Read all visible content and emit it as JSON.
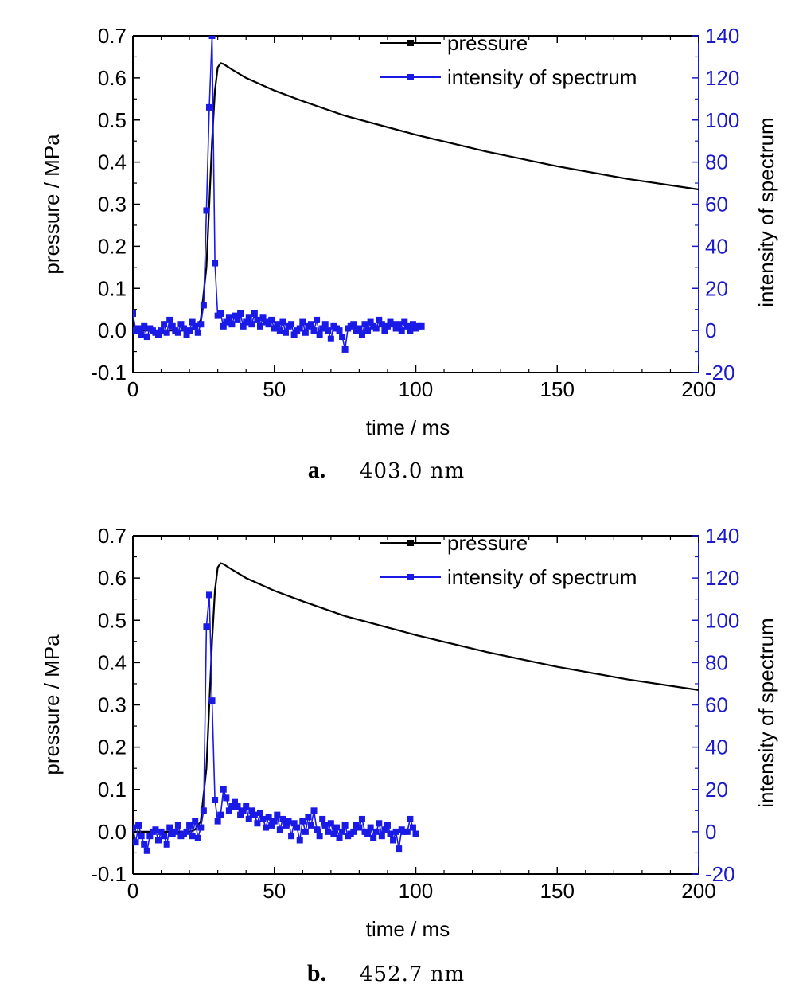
{
  "colors": {
    "pressure": "#000000",
    "intensity": "#1a1ae6",
    "right_axis": "#1a1acc",
    "axis": "#000000"
  },
  "icons": {
    "pressure_marker": "square-marker",
    "intensity_marker": "square-marker"
  },
  "chart_data": [
    {
      "type": "line",
      "caption_letter": "a.",
      "caption_text": "403.0 nm",
      "xlabel": "time / ms",
      "ylabel": "pressure / MPa",
      "y2label": "intensity of spectrum",
      "xlim": [
        0,
        200
      ],
      "ylim": [
        -0.1,
        0.7
      ],
      "y2lim": [
        -20,
        140
      ],
      "x_ticks": [
        "0",
        "50",
        "100",
        "150",
        "200"
      ],
      "y_ticks": [
        "-0.1",
        "0.0",
        "0.1",
        "0.2",
        "0.3",
        "0.4",
        "0.5",
        "0.6",
        "0.7"
      ],
      "y2_ticks": [
        "-20",
        "0",
        "20",
        "40",
        "60",
        "80",
        "100",
        "120",
        "140"
      ],
      "grid": false,
      "legend_position": "top-right",
      "series": [
        {
          "name": "pressure",
          "axis": "left",
          "x": [
            0,
            20,
            22,
            24,
            26,
            27,
            28,
            29,
            30,
            31,
            32,
            35,
            40,
            50,
            60,
            75,
            100,
            125,
            150,
            175,
            200
          ],
          "y": [
            0.0,
            0.0,
            0.005,
            0.025,
            0.15,
            0.3,
            0.45,
            0.57,
            0.625,
            0.635,
            0.633,
            0.62,
            0.6,
            0.57,
            0.545,
            0.51,
            0.465,
            0.425,
            0.39,
            0.36,
            0.335
          ]
        },
        {
          "name": "intensity of spectrum",
          "axis": "right",
          "x": [
            0,
            1,
            2,
            3,
            4,
            5,
            6,
            7,
            8,
            9,
            10,
            11,
            12,
            13,
            14,
            15,
            16,
            17,
            18,
            19,
            20,
            21,
            22,
            23,
            24,
            25,
            26,
            27,
            28,
            29,
            30,
            31,
            32,
            33,
            34,
            35,
            36,
            37,
            38,
            39,
            40,
            41,
            42,
            43,
            44,
            45,
            46,
            47,
            48,
            49,
            50,
            51,
            52,
            53,
            54,
            55,
            56,
            57,
            58,
            59,
            60,
            61,
            62,
            63,
            64,
            65,
            66,
            67,
            68,
            69,
            70,
            71,
            72,
            73,
            74,
            75,
            76,
            77,
            78,
            79,
            80,
            81,
            82,
            83,
            84,
            85,
            86,
            87,
            88,
            89,
            90,
            91,
            92,
            93,
            94,
            95,
            96,
            97,
            98,
            99,
            100,
            101,
            102
          ],
          "y": [
            8,
            0,
            1,
            -2,
            2,
            -3,
            1,
            0,
            -1,
            -2,
            0,
            3,
            -1,
            5,
            2,
            0,
            -1,
            3,
            1,
            -2,
            0,
            4,
            2,
            -1,
            3,
            12,
            57,
            106,
            140,
            32,
            7,
            8,
            2,
            4,
            6,
            3,
            7,
            5,
            8,
            2,
            4,
            6,
            3,
            8,
            5,
            2,
            6,
            4,
            3,
            5,
            1,
            3,
            0,
            4,
            -1,
            2,
            3,
            -2,
            0,
            1,
            4,
            -1,
            2,
            3,
            0,
            5,
            -2,
            1,
            3,
            0,
            -4,
            2,
            1,
            0,
            -3,
            -9,
            1,
            2,
            3,
            0,
            1,
            -2,
            3,
            0,
            4,
            2,
            1,
            5,
            3,
            0,
            2,
            4,
            3,
            1,
            3,
            0,
            4,
            2,
            0,
            3,
            1,
            2,
            2
          ]
        }
      ]
    },
    {
      "type": "line",
      "caption_letter": "b.",
      "caption_text": "452.7 nm",
      "xlabel": "time / ms",
      "ylabel": "pressure / MPa",
      "y2label": "intensity of spectrum",
      "xlim": [
        0,
        200
      ],
      "ylim": [
        -0.1,
        0.7
      ],
      "y2lim": [
        -20,
        140
      ],
      "x_ticks": [
        "0",
        "50",
        "100",
        "150",
        "200"
      ],
      "y_ticks": [
        "-0.1",
        "0.0",
        "0.1",
        "0.2",
        "0.3",
        "0.4",
        "0.5",
        "0.6",
        "0.7"
      ],
      "y2_ticks": [
        "-20",
        "0",
        "20",
        "40",
        "60",
        "80",
        "100",
        "120",
        "140"
      ],
      "grid": false,
      "legend_position": "top-right",
      "series": [
        {
          "name": "pressure",
          "axis": "left",
          "x": [
            0,
            20,
            22,
            24,
            26,
            27,
            28,
            29,
            30,
            31,
            32,
            35,
            40,
            50,
            60,
            75,
            100,
            125,
            150,
            175,
            200
          ],
          "y": [
            0.0,
            0.0,
            0.005,
            0.025,
            0.15,
            0.3,
            0.45,
            0.57,
            0.625,
            0.635,
            0.633,
            0.62,
            0.6,
            0.57,
            0.545,
            0.51,
            0.465,
            0.425,
            0.39,
            0.36,
            0.335
          ]
        },
        {
          "name": "intensity of spectrum",
          "axis": "right",
          "x": [
            0,
            1,
            2,
            3,
            4,
            5,
            6,
            7,
            8,
            9,
            10,
            11,
            12,
            13,
            14,
            15,
            16,
            17,
            18,
            19,
            20,
            21,
            22,
            23,
            24,
            25,
            26,
            27,
            28,
            29,
            30,
            31,
            32,
            33,
            34,
            35,
            36,
            37,
            38,
            39,
            40,
            41,
            42,
            43,
            44,
            45,
            46,
            47,
            48,
            49,
            50,
            51,
            52,
            53,
            54,
            55,
            56,
            57,
            58,
            59,
            60,
            61,
            62,
            63,
            64,
            65,
            66,
            67,
            68,
            69,
            70,
            71,
            72,
            73,
            74,
            75,
            76,
            77,
            78,
            79,
            80,
            81,
            82,
            83,
            84,
            85,
            86,
            87,
            88,
            89,
            90,
            91,
            92,
            93,
            94,
            95,
            96,
            97,
            98,
            99,
            100
          ],
          "y": [
            2,
            -5,
            3,
            -2,
            -6,
            -9,
            -2,
            0,
            1,
            -4,
            0,
            -2,
            -6,
            2,
            -1,
            0,
            3,
            -2,
            -1,
            0,
            3,
            -2,
            5,
            -3,
            2,
            10,
            97,
            112,
            62,
            15,
            5,
            8,
            20,
            16,
            10,
            12,
            14,
            12,
            8,
            10,
            12,
            6,
            10,
            8,
            4,
            9,
            6,
            2,
            7,
            3,
            5,
            8,
            1,
            6,
            3,
            5,
            -2,
            4,
            2,
            -4,
            5,
            0,
            7,
            3,
            10,
            1,
            -2,
            6,
            3,
            0,
            4,
            -1,
            2,
            -3,
            0,
            3,
            -2,
            -1,
            0,
            3,
            2,
            6,
            0,
            -1,
            2,
            -3,
            0,
            4,
            -2,
            1,
            3,
            -1,
            -4,
            0,
            -8,
            1,
            0,
            0,
            6,
            2,
            -1
          ]
        }
      ]
    }
  ]
}
